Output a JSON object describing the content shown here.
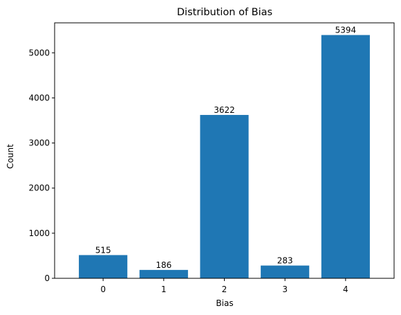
{
  "chart_data": {
    "type": "bar",
    "title": "Distribution of Bias",
    "xlabel": "Bias",
    "ylabel": "Count",
    "categories": [
      "0",
      "1",
      "2",
      "3",
      "4"
    ],
    "values": [
      515,
      186,
      3622,
      283,
      5394
    ],
    "data_labels": [
      "515",
      "186",
      "3622",
      "283",
      "5394"
    ],
    "ylim": [
      0,
      5664
    ],
    "yticks": [
      0,
      1000,
      2000,
      3000,
      4000,
      5000
    ],
    "ytick_labels": [
      "0",
      "1000",
      "2000",
      "3000",
      "4000",
      "5000"
    ],
    "bar_color": "#1f77b4",
    "grid": false
  }
}
